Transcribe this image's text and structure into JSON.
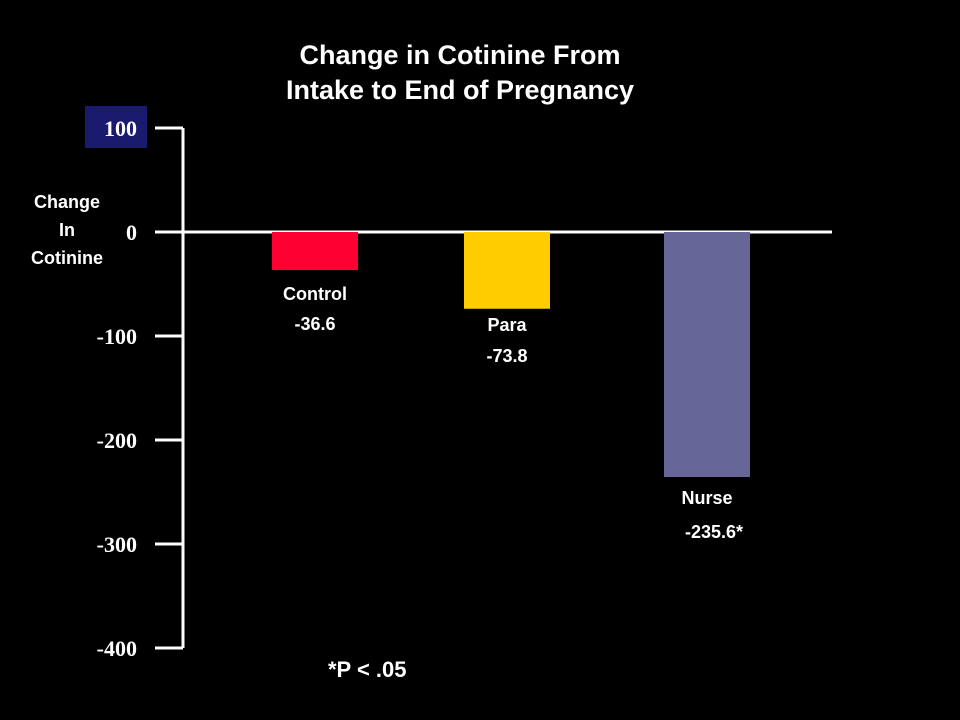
{
  "chart_data": {
    "type": "bar",
    "title_lines": [
      "Change in Cotinine From",
      "Intake to End of Pregnancy"
    ],
    "ylabel_lines": [
      "Change",
      "In",
      "Cotinine"
    ],
    "ylim": [
      -400,
      100
    ],
    "yticks": [
      100,
      0,
      -100,
      -200,
      -300,
      -400
    ],
    "ytick_labels": [
      "100",
      "0",
      "-100",
      "-200",
      "-300",
      "-400"
    ],
    "grid": false,
    "legend": "none",
    "highlight_tick": {
      "label": "100",
      "bg": "#1a1a6e"
    },
    "categories": [
      "Control",
      "Para",
      "Nurse"
    ],
    "values": [
      -36.6,
      -73.8,
      -235.6
    ],
    "value_labels": [
      "-36.6",
      "-73.8",
      "-235.6*"
    ],
    "colors": [
      "#ff0033",
      "#ffcc00",
      "#666699"
    ],
    "footnote": "*P < .05"
  }
}
